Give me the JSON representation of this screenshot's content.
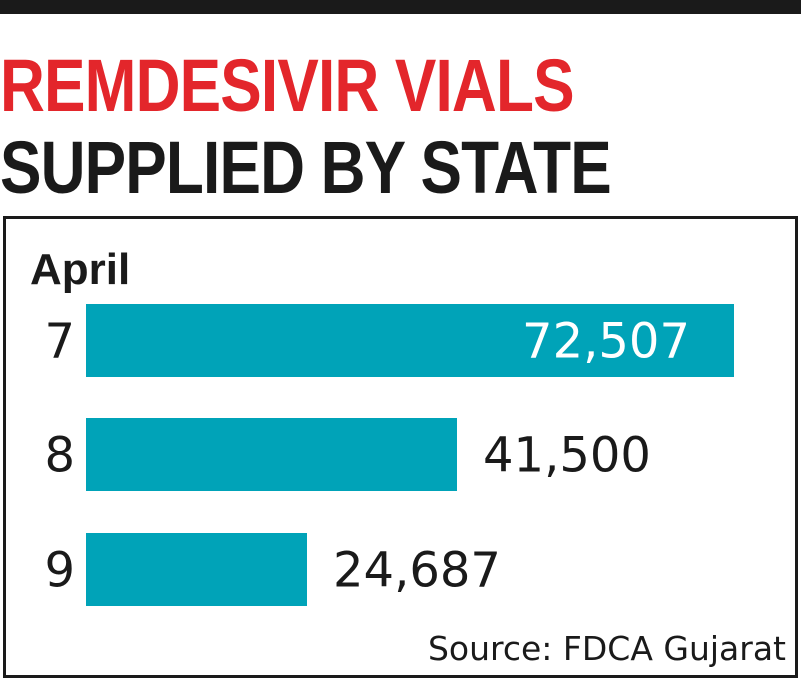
{
  "title": {
    "line1": "REMDESIVIR VIALS",
    "line2": "SUPPLIED BY STATE"
  },
  "chart_data": {
    "type": "bar",
    "orientation": "horizontal",
    "category_axis_label": "April",
    "categories": [
      "7",
      "8",
      "9"
    ],
    "values": [
      72507,
      41500,
      24687
    ],
    "value_labels": [
      "72,507",
      "41,500",
      "24,687"
    ],
    "source": "Source: FDCA Gujarat",
    "xlim": [
      0,
      72507
    ],
    "grid": false,
    "legend": "none"
  },
  "colors": {
    "bar": "#00a3b8",
    "title_accent": "#e3262b",
    "text": "#1a1a1a",
    "label_inside": "#ffffff"
  }
}
